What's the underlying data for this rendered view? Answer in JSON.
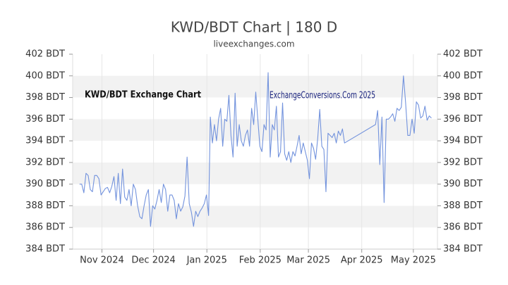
{
  "chart_data": {
    "type": "line",
    "title": "KWD/BDT Chart | 180 D",
    "subtitle": "liveexchanges.com",
    "annotations": [
      "KWD/BDT Exchange Chart",
      "ExchangeConversions.Com 2025"
    ],
    "xlim": [
      0,
      212
    ],
    "xticks": [
      {
        "value": 17,
        "label": "Nov 2024"
      },
      {
        "value": 47,
        "label": "Dec 2024"
      },
      {
        "value": 78,
        "label": "Jan 2025"
      },
      {
        "value": 109,
        "label": "Feb 2025"
      },
      {
        "value": 137,
        "label": "Mar 2025"
      },
      {
        "value": 168,
        "label": "Apr 2025"
      },
      {
        "value": 198,
        "label": "May 2025"
      }
    ],
    "ylim": [
      384,
      402
    ],
    "yticks": [
      {
        "value": 384,
        "label": "384 BDT"
      },
      {
        "value": 386,
        "label": "386 BDT"
      },
      {
        "value": 388,
        "label": "388 BDT"
      },
      {
        "value": 390,
        "label": "390 BDT"
      },
      {
        "value": 392,
        "label": "392 BDT"
      },
      {
        "value": 394,
        "label": "394 BDT"
      },
      {
        "value": 396,
        "label": "396 BDT"
      },
      {
        "value": 398,
        "label": "398 BDT"
      },
      {
        "value": 400,
        "label": "400 BDT"
      },
      {
        "value": 402,
        "label": "402 BDT"
      }
    ],
    "grid": true,
    "x": [
      4,
      5.25,
      6.5,
      7.75,
      9,
      10.25,
      11.5,
      12.75,
      14,
      15.25,
      16.5,
      17.75,
      19,
      20.25,
      21.5,
      22.75,
      24,
      25.25,
      26.5,
      27.75,
      29,
      30.25,
      31.5,
      32.75,
      34,
      35.25,
      36.5,
      37.75,
      39,
      40.25,
      41.5,
      42.75,
      44,
      45.25,
      46.5,
      47.75,
      49,
      50.25,
      51.5,
      52.75,
      54,
      55.25,
      56.5,
      57.75,
      59,
      60.25,
      61.5,
      62.75,
      64,
      65.25,
      66.5,
      67.75,
      69,
      70.25,
      71.5,
      72.75,
      74,
      75.25,
      76.5,
      77.75,
      79,
      80,
      81.2,
      82.4,
      83.6,
      84.8,
      86,
      87.2,
      88.4,
      89.6,
      90.8,
      92,
      93.2,
      94.4,
      95.6,
      96.8,
      98,
      99.2,
      100.4,
      101.6,
      102.8,
      104,
      105.2,
      106.4,
      107.6,
      108.8,
      110,
      111.2,
      112.4,
      113.6,
      114.8,
      116,
      117.2,
      118.4,
      119.6,
      120.8,
      122,
      123.2,
      124.4,
      125.6,
      126.8,
      128,
      129.2,
      130.4,
      131.6,
      132.8,
      134,
      135.2,
      136.4,
      137.6,
      138.8,
      140,
      141.2,
      142.4,
      143.6,
      144.8,
      146,
      147.2,
      148.4,
      149.6,
      150.8,
      152,
      153.2,
      154.4,
      155.6,
      156.8,
      158,
      176,
      177.25,
      178.5,
      179.75,
      181,
      182.25,
      183.5,
      184.75,
      186,
      187.25,
      188.5,
      189.75,
      191,
      192.25,
      193.5,
      194.75,
      196,
      197.25,
      198.5,
      199.75,
      201,
      202.25,
      203.5,
      204.75,
      206,
      207.25,
      208.5
    ],
    "series": [
      {
        "color": "#7393dd",
        "values": [
          390,
          390,
          389.2,
          391,
          390.8,
          389.5,
          389.3,
          390.8,
          390.8,
          390.5,
          389,
          389.3,
          389.6,
          389.7,
          389.2,
          389.8,
          390.7,
          388.5,
          391,
          388.2,
          391.4,
          388.8,
          388.5,
          389.5,
          388,
          390,
          389.5,
          388,
          387,
          386.8,
          388,
          389,
          389.5,
          386.1,
          388,
          387.7,
          388.5,
          389.5,
          388.3,
          390,
          389.5,
          387.5,
          389,
          389,
          388.5,
          386.8,
          388.2,
          387.5,
          387.9,
          388.9,
          392.5,
          388.2,
          387.4,
          386.1,
          387.5,
          387,
          387.5,
          387.8,
          388.2,
          389,
          387.1,
          396.2,
          393.8,
          395.5,
          394,
          396,
          397,
          393.5,
          396,
          395.8,
          398.2,
          394.5,
          392.5,
          398.4,
          393.5,
          395.5,
          394,
          393.5,
          394.5,
          395,
          393.5,
          397,
          395.5,
          398.5,
          396,
          393.5,
          393,
          395.5,
          395,
          400.3,
          392.5,
          395.5,
          395,
          397.2,
          392.5,
          393,
          397.5,
          392.8,
          392.2,
          393,
          392,
          393,
          392.6,
          393.5,
          394.5,
          392.8,
          393.8,
          393,
          392.2,
          390.5,
          393.8,
          393.3,
          392.3,
          394.2,
          396.9,
          393.5,
          393.2,
          389.3,
          394.7,
          394.5,
          394.3,
          394.7,
          393.8,
          394.9,
          394.5,
          395.1,
          393.8,
          395.5,
          396.8,
          391.8,
          396.2,
          388.3,
          396,
          396,
          396.2,
          396.5,
          395.8,
          397,
          396.8,
          397.1,
          400,
          397.5,
          394.5,
          394.5,
          396,
          394.7,
          397.6,
          397.3,
          396.1,
          396.3,
          397.2,
          395.9,
          396.3,
          396.1
        ]
      }
    ]
  }
}
